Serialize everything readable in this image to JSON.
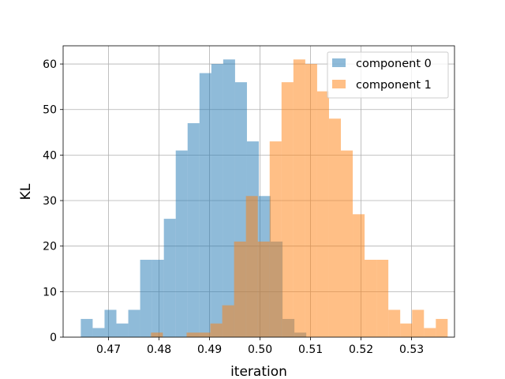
{
  "chart_data": {
    "type": "histogram",
    "xlabel": "iteration",
    "ylabel": "KL",
    "xlim": [
      0.461,
      0.5385
    ],
    "ylim": [
      0,
      64
    ],
    "grid": true,
    "legend_position": "upper right",
    "x_ticks": [
      {
        "value": 0.47,
        "label": "0.47"
      },
      {
        "value": 0.48,
        "label": "0.48"
      },
      {
        "value": 0.49,
        "label": "0.49"
      },
      {
        "value": 0.5,
        "label": "0.50"
      },
      {
        "value": 0.51,
        "label": "0.51"
      },
      {
        "value": 0.52,
        "label": "0.52"
      },
      {
        "value": 0.53,
        "label": "0.53"
      }
    ],
    "y_ticks": [
      {
        "value": 0,
        "label": "0"
      },
      {
        "value": 10,
        "label": "10"
      },
      {
        "value": 20,
        "label": "20"
      },
      {
        "value": 30,
        "label": "30"
      },
      {
        "value": 40,
        "label": "40"
      },
      {
        "value": 50,
        "label": "50"
      },
      {
        "value": 60,
        "label": "60"
      }
    ],
    "series": [
      {
        "name": "component 0",
        "color": "#1f77b4",
        "opacity": 0.5,
        "bin_start": 0.4645,
        "bin_width": 0.00235,
        "counts": [
          4,
          2,
          6,
          3,
          6,
          17,
          17,
          26,
          41,
          47,
          58,
          60,
          61,
          56,
          43,
          31,
          21,
          4,
          1
        ]
      },
      {
        "name": "component 1",
        "color": "#ff7f0e",
        "opacity": 0.5,
        "bin_start": 0.4784,
        "bin_width": 0.00235,
        "counts": [
          1,
          0,
          0,
          1,
          1,
          3,
          7,
          21,
          31,
          21,
          43,
          56,
          61,
          60,
          54,
          48,
          41,
          27,
          17,
          17,
          6,
          3,
          6,
          2,
          4
        ]
      }
    ]
  }
}
